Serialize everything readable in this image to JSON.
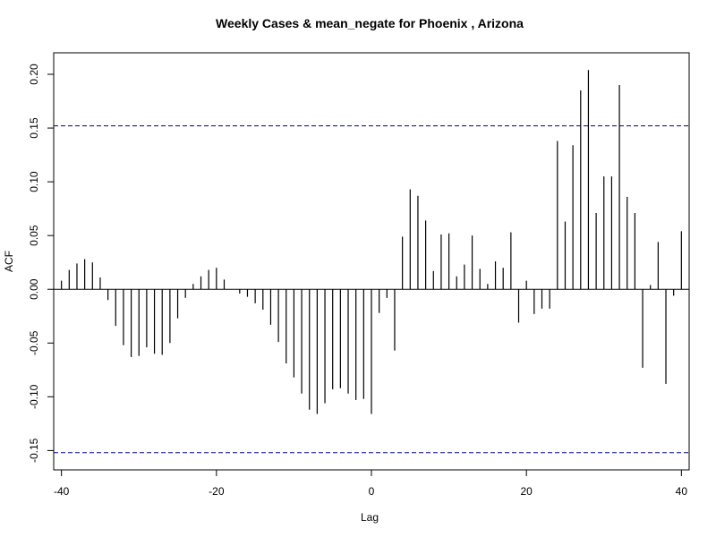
{
  "chart_data": {
    "type": "bar",
    "title": "Weekly Cases & mean_negate for Phoenix , Arizona",
    "xlabel": "Lag",
    "ylabel": "ACF",
    "xlim": [
      -41,
      41
    ],
    "ylim": [
      -0.168,
      0.22
    ],
    "x_ticks": [
      -40,
      -20,
      0,
      20,
      40
    ],
    "x_tick_labels": [
      "-40",
      "-20",
      "0",
      "20",
      "40"
    ],
    "y_ticks": [
      -0.15,
      -0.1,
      -0.05,
      0.0,
      0.05,
      0.1,
      0.15,
      0.2
    ],
    "y_tick_labels": [
      "-0.15",
      "-0.10",
      "-0.05",
      "0.00",
      "0.05",
      "0.10",
      "0.15",
      "0.20"
    ],
    "confidence_band": 0.152,
    "colors": {
      "bars": "#000000",
      "band": "#00008B",
      "zero_line": "#000000"
    },
    "lags": [
      -40,
      -39,
      -38,
      -37,
      -36,
      -35,
      -34,
      -33,
      -32,
      -31,
      -30,
      -29,
      -28,
      -27,
      -26,
      -25,
      -24,
      -23,
      -22,
      -21,
      -20,
      -19,
      -18,
      -17,
      -16,
      -15,
      -14,
      -13,
      -12,
      -11,
      -10,
      -9,
      -8,
      -7,
      -6,
      -5,
      -4,
      -3,
      -2,
      -1,
      0,
      1,
      2,
      3,
      4,
      5,
      6,
      7,
      8,
      9,
      10,
      11,
      12,
      13,
      14,
      15,
      16,
      17,
      18,
      19,
      20,
      21,
      22,
      23,
      24,
      25,
      26,
      27,
      28,
      29,
      30,
      31,
      32,
      33,
      34,
      35,
      36,
      37,
      38,
      39,
      40
    ],
    "values": [
      0.008,
      0.018,
      0.024,
      0.028,
      0.025,
      0.011,
      -0.01,
      -0.034,
      -0.052,
      -0.063,
      -0.062,
      -0.054,
      -0.06,
      -0.061,
      -0.05,
      -0.027,
      -0.008,
      0.005,
      0.012,
      0.018,
      0.02,
      0.009,
      0.0,
      -0.004,
      -0.007,
      -0.013,
      -0.019,
      -0.033,
      -0.049,
      -0.069,
      -0.082,
      -0.097,
      -0.112,
      -0.116,
      -0.106,
      -0.093,
      -0.092,
      -0.097,
      -0.103,
      -0.102,
      -0.116,
      -0.022,
      -0.008,
      -0.057,
      0.049,
      0.093,
      0.087,
      0.064,
      0.017,
      0.051,
      0.052,
      0.012,
      0.023,
      0.05,
      0.019,
      0.005,
      0.026,
      0.02,
      0.053,
      -0.031,
      0.008,
      -0.023,
      -0.018,
      -0.018,
      0.138,
      0.063,
      0.134,
      0.185,
      0.204,
      0.071,
      0.105,
      0.105,
      0.19,
      0.086,
      0.071,
      -0.073,
      0.004,
      0.044,
      -0.088,
      -0.006,
      0.054
    ]
  }
}
